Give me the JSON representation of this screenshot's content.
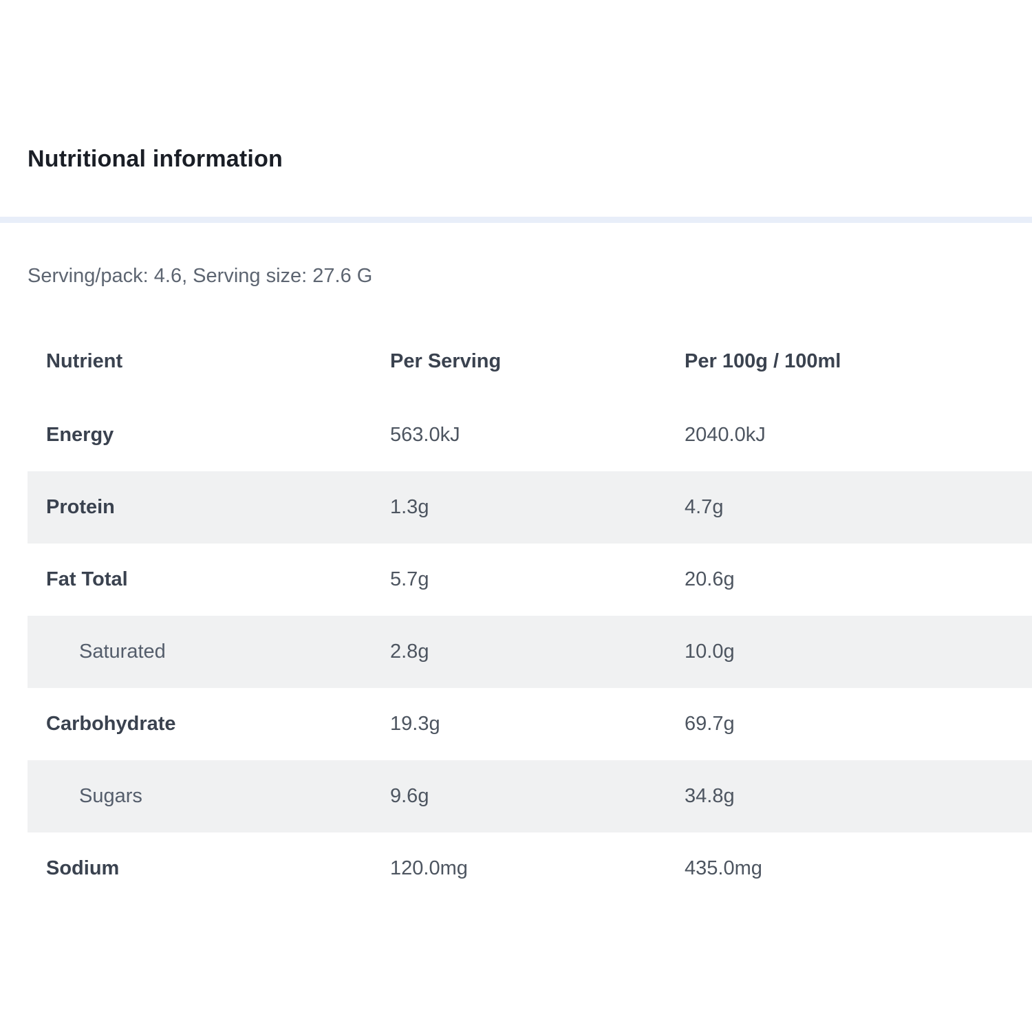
{
  "page": {
    "title": "Nutritional information",
    "serving_info": "Serving/pack: 4.6, Serving size: 27.6 G"
  },
  "table": {
    "columns": [
      "Nutrient",
      "Per Serving",
      "Per 100g / 100ml"
    ],
    "rows": [
      {
        "nutrient": "Energy",
        "per_serving": "563.0kJ",
        "per_100g": "2040.0kJ",
        "indent": false,
        "shaded": false
      },
      {
        "nutrient": "Protein",
        "per_serving": "1.3g",
        "per_100g": "4.7g",
        "indent": false,
        "shaded": true
      },
      {
        "nutrient": "Fat Total",
        "per_serving": "5.7g",
        "per_100g": "20.6g",
        "indent": false,
        "shaded": false
      },
      {
        "nutrient": "Saturated",
        "per_serving": "2.8g",
        "per_100g": "10.0g",
        "indent": true,
        "shaded": true
      },
      {
        "nutrient": "Carbohydrate",
        "per_serving": "19.3g",
        "per_100g": "69.7g",
        "indent": false,
        "shaded": false
      },
      {
        "nutrient": "Sugars",
        "per_serving": "9.6g",
        "per_100g": "34.8g",
        "indent": true,
        "shaded": true
      },
      {
        "nutrient": "Sodium",
        "per_serving": "120.0mg",
        "per_100g": "435.0mg",
        "indent": false,
        "shaded": false
      }
    ]
  },
  "colors": {
    "background": "#ffffff",
    "title_text": "#1a1e26",
    "divider": "#e8eef9",
    "subtitle_text": "#5d6571",
    "header_text": "#3a424f",
    "label_text": "#3a424f",
    "value_text": "#4d5560",
    "shaded_row": "#f0f1f2"
  }
}
